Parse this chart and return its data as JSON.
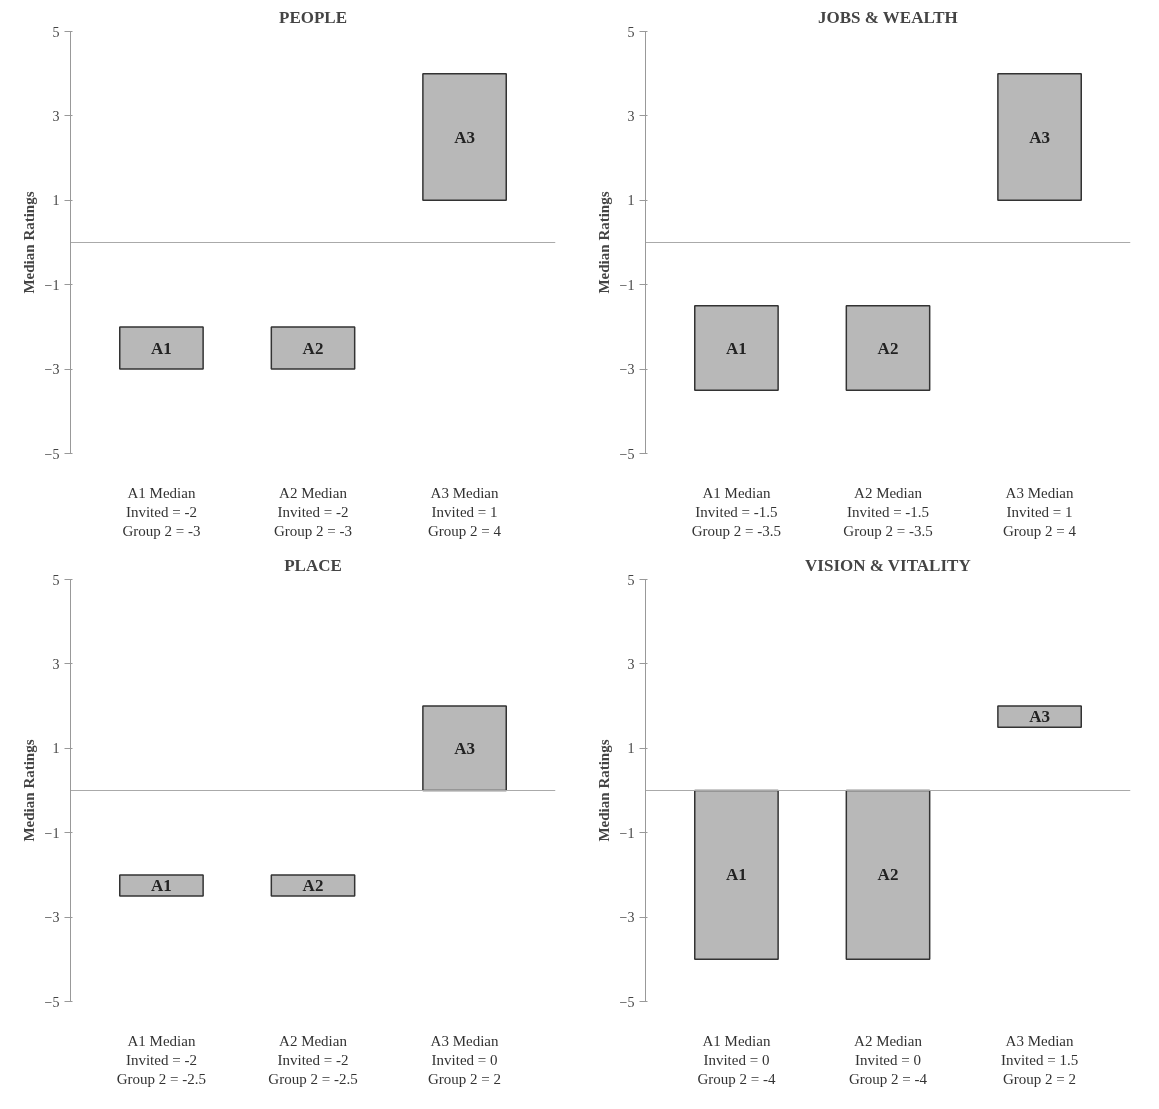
{
  "chart_data": [
    {
      "type": "bar",
      "title": "PEOPLE",
      "ylabel": "Median Ratings",
      "categories": [
        "A1",
        "A2",
        "A3"
      ],
      "base": [
        -2,
        -2,
        1
      ],
      "values": [
        -1,
        -1,
        3
      ],
      "color": "#b8b8b8",
      "ylim": [
        -5,
        5
      ],
      "yticks": [
        -5,
        -3,
        -1,
        1,
        3,
        5
      ],
      "grid": false,
      "tick_labels": "y",
      "annotations": [
        "A1 Median\nInvited = -2\nGroup 2 = -3",
        "A2 Median\nInvited = -2\nGroup 2 = -3",
        "A3 Median\nInvited = 1\nGroup 2 = 4"
      ]
    },
    {
      "type": "bar",
      "title": "JOBS & WEALTH",
      "ylabel": "Median Ratings",
      "categories": [
        "A1",
        "A2",
        "A3"
      ],
      "base": [
        -1.5,
        -1.5,
        1
      ],
      "values": [
        -2,
        -2,
        3
      ],
      "color": "#b8b8b8",
      "ylim": [
        -5,
        5
      ],
      "yticks": [
        -5,
        -3,
        -1,
        1,
        3,
        5
      ],
      "grid": false,
      "tick_labels": "y",
      "annotations": [
        "A1 Median\nInvited = -1.5\nGroup 2 = -3.5",
        "A2 Median\nInvited = -1.5\nGroup 2 = -3.5",
        "A3 Median\nInvited = 1\nGroup 2 = 4"
      ]
    },
    {
      "type": "bar",
      "title": "PLACE",
      "ylabel": "Median Ratings",
      "categories": [
        "A1",
        "A2",
        "A3"
      ],
      "base": [
        -2,
        -2,
        0
      ],
      "values": [
        -0.5,
        -0.5,
        2
      ],
      "color": "#b8b8b8",
      "ylim": [
        -5,
        5
      ],
      "yticks": [
        -5,
        -3,
        -1,
        1,
        3,
        5
      ],
      "grid": false,
      "tick_labels": "y",
      "annotations": [
        "A1 Median\nInvited = -2\nGroup 2 = -2.5",
        "A2 Median\nInvited = -2\nGroup 2 = -2.5",
        "A3 Median\nInvited = 0\nGroup 2 = 2"
      ]
    },
    {
      "type": "bar",
      "title": "VISION & VITALITY",
      "ylabel": "Median Ratings",
      "categories": [
        "A1",
        "A2",
        "A3"
      ],
      "base": [
        0,
        0,
        1.5
      ],
      "values": [
        -4,
        -4,
        0.5
      ],
      "color": "#b8b8b8",
      "ylim": [
        -5,
        5
      ],
      "yticks": [
        -5,
        -3,
        -1,
        1,
        3,
        5
      ],
      "grid": false,
      "tick_labels": "y",
      "annotations": [
        "A1 Median\nInvited = 0\nGroup 2 = -4",
        "A2 Median\nInvited = 0\nGroup 2 = -4",
        "A3 Median\nInvited = 1.5\nGroup 2 = 2"
      ]
    }
  ]
}
